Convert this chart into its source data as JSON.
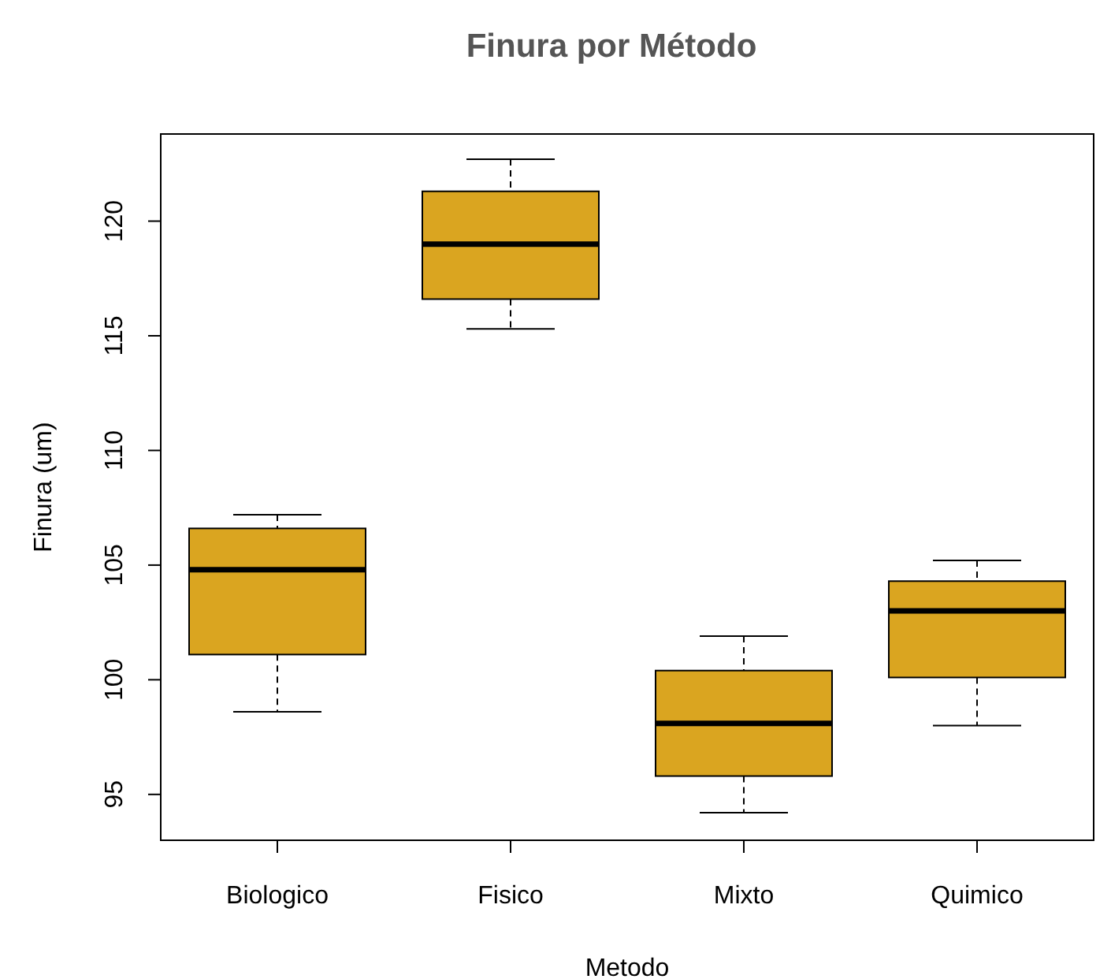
{
  "chart_data": {
    "type": "box",
    "title": "Finura por Método",
    "xlabel": "Metodo",
    "ylabel": "Finura (um)",
    "categories": [
      "Biologico",
      "Fisico",
      "Mixto",
      "Quimico"
    ],
    "series": [
      {
        "color": "#daa520",
        "boxes": [
          {
            "low": 98.6,
            "q1": 101.1,
            "median": 104.8,
            "q3": 106.6,
            "high": 107.2
          },
          {
            "low": 115.3,
            "q1": 116.6,
            "median": 119.0,
            "q3": 121.3,
            "high": 122.7
          },
          {
            "low": 94.2,
            "q1": 95.8,
            "median": 98.1,
            "q3": 100.4,
            "high": 101.9
          },
          {
            "low": 98.0,
            "q1": 100.1,
            "median": 103.0,
            "q3": 104.3,
            "high": 105.2
          }
        ]
      }
    ],
    "ylim": [
      93,
      123.8
    ],
    "yticks": [
      95,
      100,
      105,
      110,
      115,
      120
    ],
    "grid": false
  }
}
